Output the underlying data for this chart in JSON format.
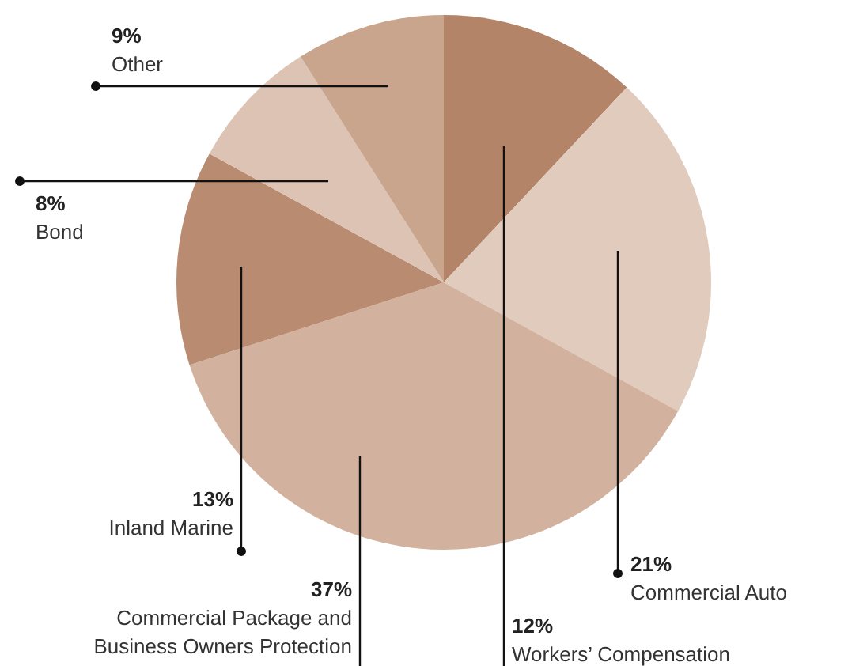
{
  "chart_data": {
    "type": "pie",
    "categories": [
      "Workers’ Compensation",
      "Commercial Auto",
      "Commercial Package and Business Owners Protection",
      "Inland Marine",
      "Bond",
      "Other"
    ],
    "values": [
      12,
      21,
      37,
      13,
      8,
      9
    ],
    "colors": [
      "#b48468",
      "#e0cbbd",
      "#d2b29f",
      "#b98b70",
      "#dcc3b3",
      "#c9a58d"
    ],
    "value_labels": [
      "12%",
      "21%",
      "37%",
      "13%",
      "8%",
      "9%"
    ]
  }
}
